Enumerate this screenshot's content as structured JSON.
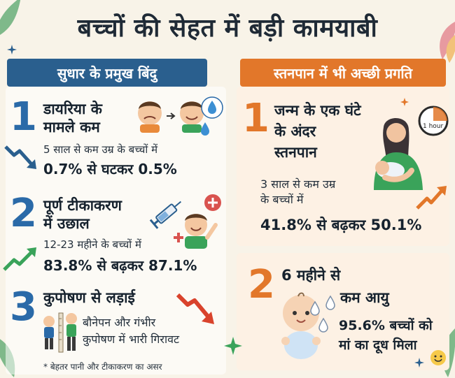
{
  "title": "बच्चों की सेहत में बड़ी कामयाबी",
  "left_banner": "सुधार के प्रमुख बिंदु",
  "right_banner": "स्तनपान में भी अच्छी प्रगति",
  "left_items": [
    {
      "number": "1",
      "heading_line1": "डायरिया के",
      "heading_line2": "मामले कम",
      "text": "5 साल से कम उम्र के बच्चों में",
      "stat": "0.7% से घटकर 0.5%"
    },
    {
      "number": "2",
      "heading_line1": "पूर्ण टीकाकरण",
      "heading_line2": "में उछाल",
      "text": "12-23 महीने के बच्चों में",
      "stat": "83.8% से बढ़कर 87.1%"
    },
    {
      "number": "3",
      "heading_line1": "कुपोषण से लड़ाई",
      "text_line1": "बौनेपन और गंभीर",
      "text_line2": "कुपोषण में भारी गिरावट"
    }
  ],
  "right_items": [
    {
      "number": "1",
      "heading_line1": "जन्म के एक घंटे",
      "heading_line2": "के अंदर",
      "heading_line3": "स्तनपान",
      "text_line1": "3 साल से कम उम्र",
      "text_line2": "के बच्चों में",
      "stat": "41.8% से बढ़कर 50.1%",
      "clock_label": "1 hour"
    },
    {
      "number": "2",
      "heading_line1": "6 महीने से",
      "heading_line2": "कम आयु",
      "stat_line1": "95.6% बच्चों को",
      "stat_line2": "मां का दूध मिला"
    }
  ],
  "footnote": "* बेहतर पानी और टीकाकरण का असर",
  "colors": {
    "blue": "#2a5f8e",
    "orange": "#e2772a",
    "green": "#3aa35a",
    "red": "#d9432c"
  }
}
